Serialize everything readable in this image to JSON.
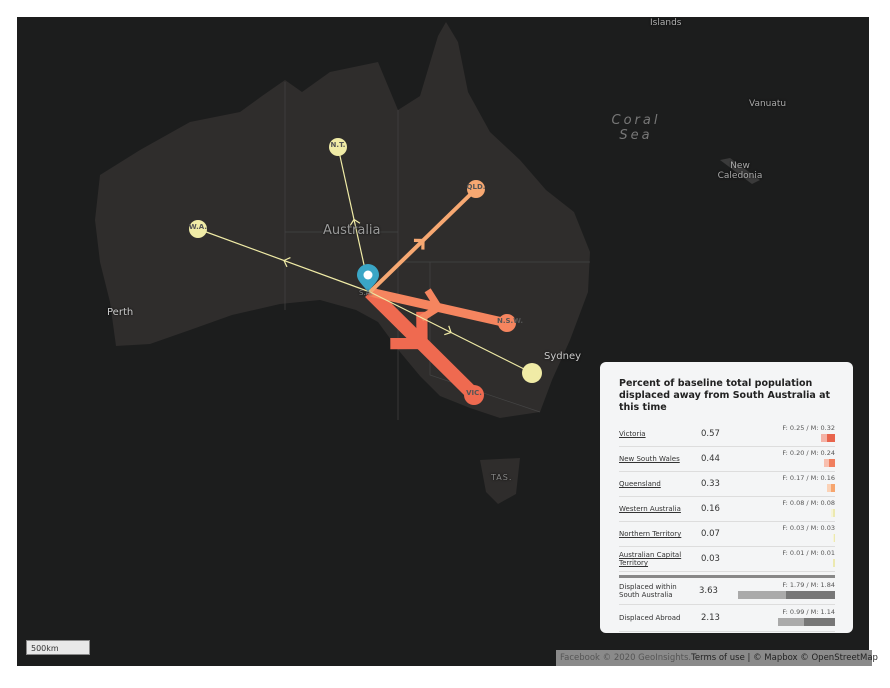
{
  "map": {
    "labels": {
      "country": "Australia",
      "perth": "Perth",
      "sydney": "Sydney",
      "vanuatu": "Vanuatu",
      "new_caledonia": "New Caledonia",
      "coral_sea": "Coral Sea",
      "islands": "Islands"
    },
    "nodes": {
      "origin": "S.A.",
      "nt": "N.T.",
      "wa": "W.A.",
      "qld": "QLD.",
      "nsw": "N.S.W.",
      "vic": "VIC.",
      "tas": "TAS."
    },
    "colors": {
      "land": "#2f2d2c",
      "water": "#1c1d1d",
      "pin": "#3aa6c6",
      "vic": "#ef6a50",
      "nsw": "#f5855f",
      "qld": "#f7a872",
      "low": "#f0eba6"
    },
    "scale": "500km",
    "attribution": {
      "facebook": "Facebook © 2020 GeoInsights.",
      "terms": "Terms of use",
      "rest": " | © Mapbox © OpenStreetMap"
    }
  },
  "legend": {
    "title": "Percent of baseline total population displaced away from South Australia at this time",
    "rows": [
      {
        "name": "Victoria",
        "value": "0.57",
        "split": "F: 0.25 / M: 0.32",
        "f": 0.25,
        "m": 0.32,
        "color": "#e8644c"
      },
      {
        "name": "New South Wales",
        "value": "0.44",
        "split": "F: 0.20 / M: 0.24",
        "f": 0.2,
        "m": 0.24,
        "color": "#f07e5e"
      },
      {
        "name": "Queensland",
        "value": "0.33",
        "split": "F: 0.17 / M: 0.16",
        "f": 0.17,
        "m": 0.16,
        "color": "#f6a56e"
      },
      {
        "name": "Western Australia",
        "value": "0.16",
        "split": "F: 0.08 / M: 0.08",
        "f": 0.08,
        "m": 0.08,
        "color": "#ece9b0"
      },
      {
        "name": "Northern Territory",
        "value": "0.07",
        "split": "F: 0.03 / M: 0.03",
        "f": 0.03,
        "m": 0.03,
        "color": "#ece9b0"
      },
      {
        "name": "Australian Capital Territory",
        "value": "0.03",
        "split": "F: 0.01 / M: 0.01",
        "f": 0.01,
        "m": 0.01,
        "color": "#ece9b0"
      }
    ],
    "totals": [
      {
        "name": "Displaced within South Australia",
        "value": "3.63",
        "split": "F: 1.79 / M: 1.84",
        "f": 1.79,
        "m": 1.84
      },
      {
        "name": "Displaced Abroad",
        "value": "2.13",
        "split": "F: 0.99 / M: 1.14",
        "f": 0.99,
        "m": 1.14
      }
    ]
  }
}
